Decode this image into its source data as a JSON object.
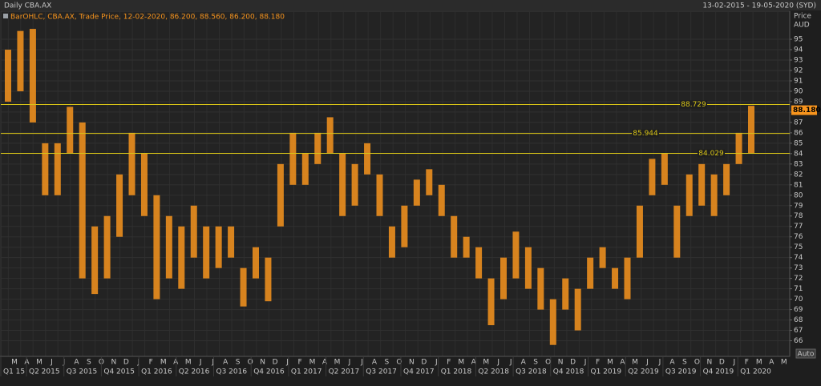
{
  "header": {
    "title": "Daily CBA.AX",
    "range": "13-02-2015 - 19-05-2020 (SYD)"
  },
  "auto_button": "Auto",
  "chart_data": {
    "type": "range",
    "legend": "BarOHLC, CBA.AX, Trade Price, 12-02-2020, 86.200, 88.560, 86.200, 88.180",
    "y_axis_title": [
      "Price",
      "AUD"
    ],
    "color": "#f7941d",
    "line_color": "#d8c417",
    "low": [
      89,
      90,
      87,
      80,
      80,
      84,
      72,
      70.5,
      72,
      76,
      80,
      78,
      70,
      72,
      71,
      74,
      72,
      73,
      74,
      69.3,
      72,
      69.8,
      77,
      81,
      81,
      83,
      84,
      78,
      79,
      82,
      78,
      74,
      75,
      79,
      80,
      78,
      74,
      74,
      72,
      67.5,
      70,
      72,
      71,
      69,
      65.6,
      69,
      67,
      71,
      73,
      71,
      70,
      74,
      80,
      81,
      74,
      78,
      79,
      78,
      80,
      83,
      84
    ],
    "high": [
      94,
      95.8,
      96,
      85,
      85,
      88.5,
      87,
      77,
      78,
      82,
      86,
      84,
      80,
      78,
      77,
      79,
      77,
      77,
      77,
      73,
      75,
      74,
      83,
      86,
      84,
      86,
      87.5,
      84,
      83,
      85,
      82,
      77,
      79,
      81.5,
      82.5,
      81,
      78,
      76,
      75,
      72,
      74,
      76.5,
      75,
      73,
      70,
      72,
      71,
      74,
      75,
      73,
      74,
      79,
      83.5,
      84,
      79,
      82,
      83,
      82,
      83,
      86,
      88.6
    ],
    "hlines": [
      88.729,
      85.944,
      84.029
    ],
    "last_price": {
      "value": 88.18,
      "label": "88.180"
    },
    "ylim": [
      64.5,
      97.7
    ],
    "yticks": [
      66,
      67,
      68,
      69,
      70,
      71,
      72,
      73,
      74,
      75,
      76,
      77,
      78,
      79,
      80,
      81,
      82,
      83,
      84,
      85,
      86,
      87,
      88,
      89,
      90,
      91,
      92,
      93,
      94,
      95
    ],
    "month_labels": [
      "M",
      "A",
      "M",
      "J",
      "J",
      "A",
      "S",
      "O",
      "N",
      "D",
      "J",
      "F",
      "M",
      "A",
      "M",
      "J",
      "J",
      "A",
      "S",
      "O",
      "N",
      "D",
      "J",
      "F",
      "M",
      "A",
      "M",
      "J",
      "J",
      "A",
      "S",
      "O",
      "N",
      "D",
      "J",
      "F",
      "M",
      "A",
      "M",
      "J",
      "J",
      "A",
      "S",
      "O",
      "N",
      "D",
      "J",
      "F",
      "M",
      "A",
      "M",
      "J",
      "J",
      "A",
      "S",
      "O",
      "N",
      "D",
      "J",
      "F",
      "M",
      "A",
      "M"
    ],
    "quarter_labels": [
      "Q1 15",
      "Q2 2015",
      "Q3 2015",
      "Q4 2015",
      "Q1 2016",
      "Q2 2016",
      "Q3 2016",
      "Q4 2016",
      "Q1 2017",
      "Q2 2017",
      "Q3 2017",
      "Q4 2017",
      "Q1 2018",
      "Q2 2018",
      "Q3 2018",
      "Q4 2018",
      "Q1 2019",
      "Q2 2019",
      "Q3 2019",
      "Q4 2019",
      "Q1 2020"
    ]
  }
}
